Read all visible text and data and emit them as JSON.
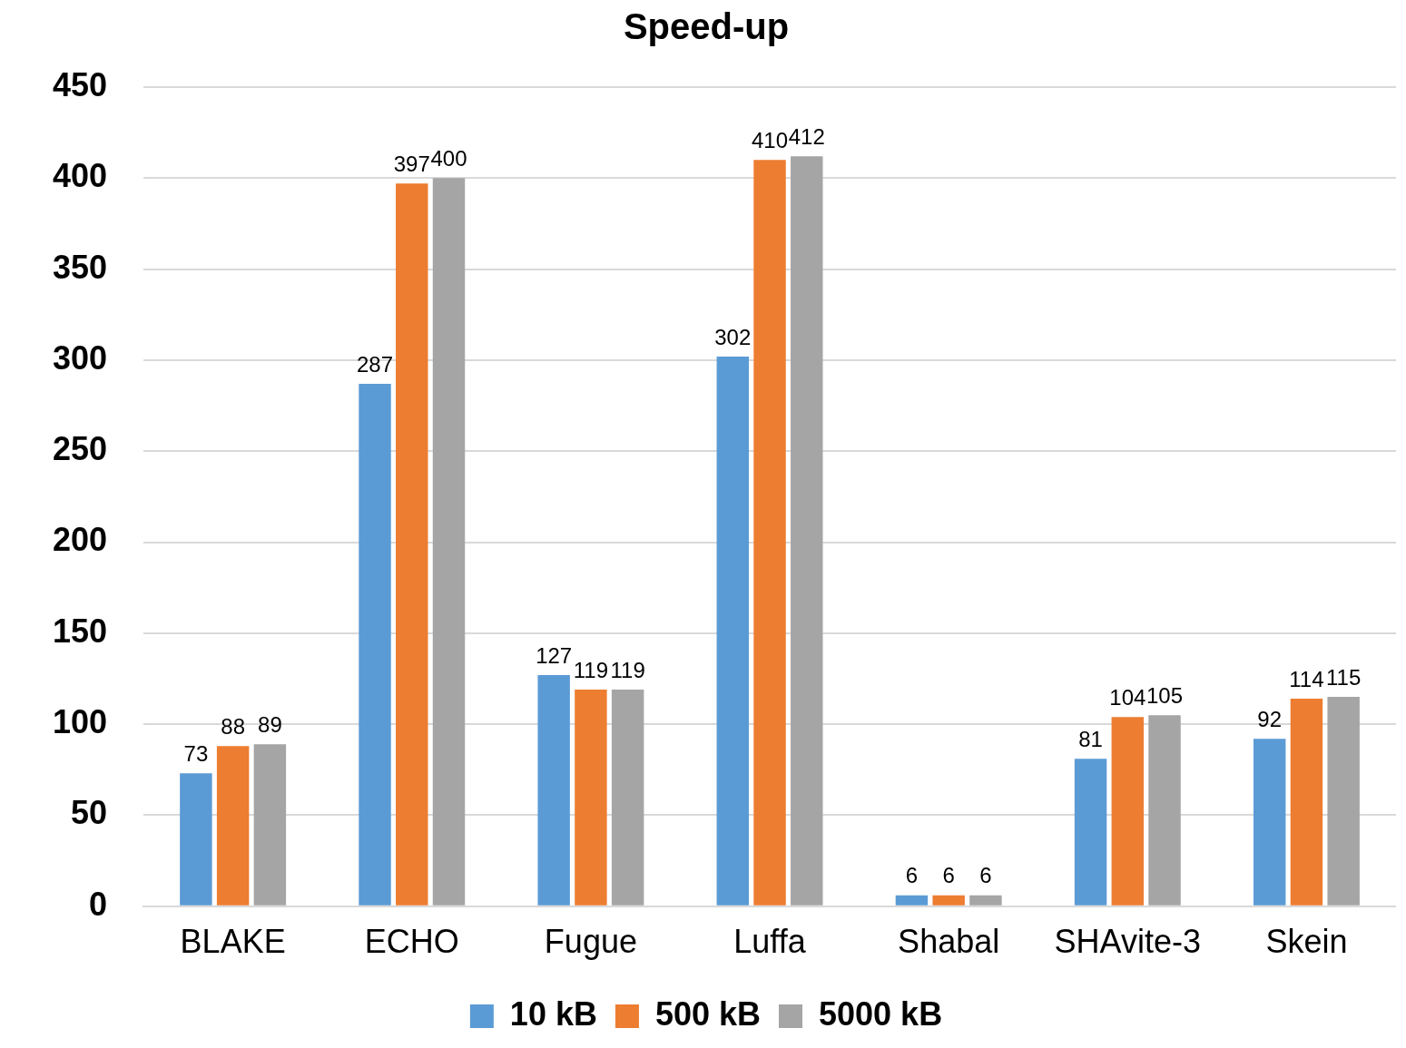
{
  "chart_data": {
    "type": "bar",
    "title": "Speed-up",
    "categories": [
      "BLAKE",
      "ECHO",
      "Fugue",
      "Luffa",
      "Shabal",
      "SHAvite-3",
      "Skein"
    ],
    "series": [
      {
        "name": "10 kB",
        "color": "#5b9bd5",
        "values": [
          73,
          287,
          127,
          302,
          6,
          81,
          92
        ]
      },
      {
        "name": "500 kB",
        "color": "#ed7d31",
        "values": [
          88,
          397,
          119,
          410,
          6,
          104,
          114
        ]
      },
      {
        "name": "5000 kB",
        "color": "#a5a5a5",
        "values": [
          89,
          400,
          119,
          412,
          6,
          105,
          115
        ]
      }
    ],
    "ylim": [
      0,
      450
    ],
    "yticks": [
      0,
      50,
      100,
      150,
      200,
      250,
      300,
      350,
      400,
      450
    ],
    "grid": "y",
    "legend": "bottom",
    "data_labels": true
  }
}
